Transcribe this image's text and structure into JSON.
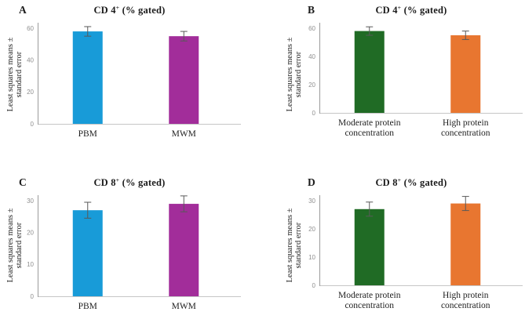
{
  "figure": {
    "background": "#ffffff"
  },
  "style": {
    "error_bar_color": "#595959",
    "axis_line_color": "#9b9b9b",
    "baseline_color": "#c6c6c6",
    "tick_label_color": "#8f8f8f",
    "text_color": "#1f1f1f"
  },
  "chart_data": [
    {
      "panel_label": "A",
      "type": "bar",
      "title": {
        "base": "CD 4",
        "sup": "+",
        "rest": " (% gated)"
      },
      "ylabel_lines": [
        "Least squares means ±",
        "standard error"
      ],
      "xlabel": "",
      "categories": [
        "PBM",
        "MWM"
      ],
      "values": [
        58,
        55
      ],
      "errors": [
        3,
        3
      ],
      "ylim": [
        0,
        60
      ],
      "yticks": [
        0,
        20,
        40,
        60
      ],
      "bar_colors": [
        "#189bd8",
        "#a22d9a"
      ],
      "grid": false,
      "legend": "none"
    },
    {
      "panel_label": "B",
      "type": "bar",
      "title": {
        "base": "CD 4",
        "sup": "+",
        "rest": " (% gated)"
      },
      "ylabel_lines": [
        "Least squares means ±",
        "standard error"
      ],
      "xlabel": "",
      "categories": [
        "Moderate protein\nconcentration",
        "High protein\nconcentration"
      ],
      "values": [
        58,
        55
      ],
      "errors": [
        3,
        3
      ],
      "ylim": [
        0,
        60
      ],
      "yticks": [
        0,
        20,
        40,
        60
      ],
      "bar_colors": [
        "#206b25",
        "#e87630"
      ],
      "grid": false,
      "legend": "none"
    },
    {
      "panel_label": "C",
      "type": "bar",
      "title": {
        "base": "CD 8",
        "sup": "+",
        "rest": " (% gated)"
      },
      "ylabel_lines": [
        "Least squares means ±",
        "standard error"
      ],
      "xlabel": "",
      "categories": [
        "PBM",
        "MWM"
      ],
      "values": [
        27,
        29
      ],
      "errors": [
        2.5,
        2.5
      ],
      "ylim": [
        0,
        30
      ],
      "yticks": [
        0,
        10,
        20,
        30
      ],
      "bar_colors": [
        "#189bd8",
        "#a22d9a"
      ],
      "grid": false,
      "legend": "none"
    },
    {
      "panel_label": "D",
      "type": "bar",
      "title": {
        "base": "CD 8",
        "sup": "+",
        "rest": " (% gated)"
      },
      "ylabel_lines": [
        "Least squares means ±",
        "standard error"
      ],
      "xlabel": "",
      "categories": [
        "Moderate protein\nconcentration",
        "High protein\nconcentration"
      ],
      "values": [
        27,
        29
      ],
      "errors": [
        2.5,
        2.5
      ],
      "ylim": [
        0,
        30
      ],
      "yticks": [
        0,
        10,
        20,
        30
      ],
      "bar_colors": [
        "#206b25",
        "#e87630"
      ],
      "grid": false,
      "legend": "none"
    }
  ]
}
